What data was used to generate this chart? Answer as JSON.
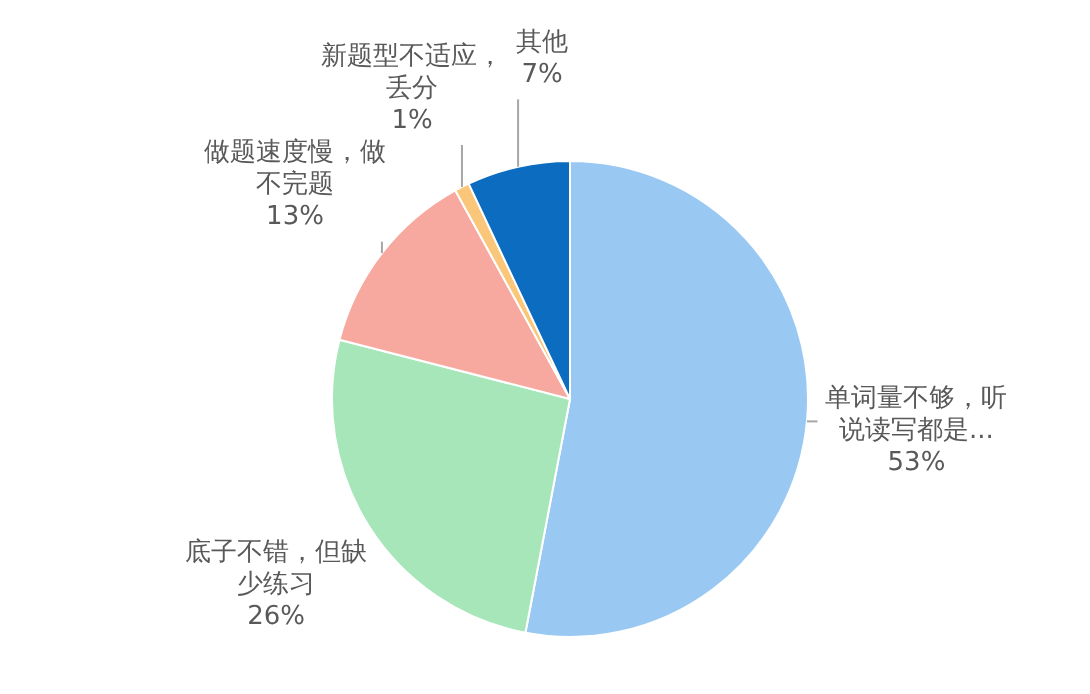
{
  "chart_data": {
    "type": "pie",
    "categories": [
      "单词量不够，听说读写都是...",
      "底子不错，但缺少练习",
      "做题速度慢，做不完题",
      "新题型不适应，丢分",
      "其他"
    ],
    "values": [
      53,
      26,
      13,
      1,
      7
    ],
    "value_labels": [
      "53%",
      "26%",
      "13%",
      "1%",
      "7%"
    ],
    "colors": [
      "#99c9f3",
      "#a6e6b8",
      "#f7a99f",
      "#f9c67a",
      "#0b6cc0"
    ],
    "legend": false
  }
}
